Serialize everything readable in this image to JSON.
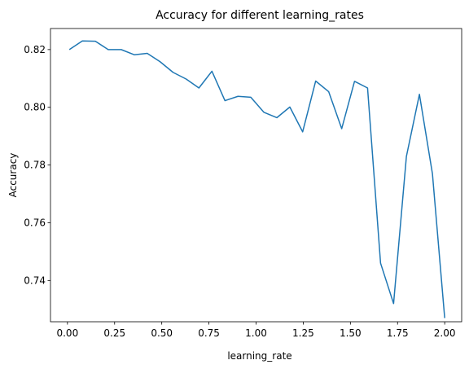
{
  "chart_data": {
    "type": "line",
    "title": "Accuracy for different learning_rates",
    "xlabel": "learning_rate",
    "ylabel": "Accuracy",
    "xlim": [
      -0.09,
      2.09
    ],
    "ylim": [
      0.7257,
      0.8273
    ],
    "x_ticks": [
      0.0,
      0.25,
      0.5,
      0.75,
      1.0,
      1.25,
      1.5,
      1.75,
      2.0
    ],
    "x_tick_labels": [
      "0.00",
      "0.25",
      "0.50",
      "0.75",
      "1.00",
      "1.25",
      "1.50",
      "1.75",
      "2.00"
    ],
    "y_ticks": [
      0.74,
      0.76,
      0.78,
      0.8,
      0.82
    ],
    "y_tick_labels": [
      "0.74",
      "0.76",
      "0.78",
      "0.80",
      "0.82"
    ],
    "grid": false,
    "series": [
      {
        "color": "#1f77b4",
        "x": [
          0.01,
          0.079,
          0.148,
          0.216,
          0.285,
          0.354,
          0.423,
          0.491,
          0.56,
          0.629,
          0.697,
          0.766,
          0.835,
          0.904,
          0.972,
          1.041,
          1.11,
          1.179,
          1.247,
          1.316,
          1.385,
          1.454,
          1.522,
          1.591,
          1.66,
          1.729,
          1.797,
          1.866,
          1.935,
          2.0
        ],
        "y": [
          0.82,
          0.823,
          0.8229,
          0.82,
          0.82,
          0.8182,
          0.8187,
          0.8158,
          0.8121,
          0.8098,
          0.8067,
          0.8125,
          0.8023,
          0.8038,
          0.8035,
          0.7983,
          0.7964,
          0.8001,
          0.7915,
          0.8091,
          0.8054,
          0.7926,
          0.809,
          0.8067,
          0.746,
          0.732,
          0.783,
          0.8045,
          0.777,
          0.727
        ]
      }
    ]
  }
}
